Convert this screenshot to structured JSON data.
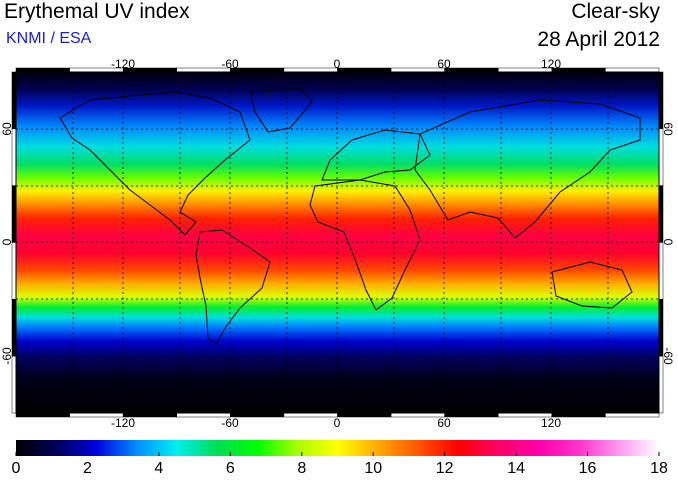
{
  "header": {
    "title": "Erythemal UV index",
    "source": "KNMI / ESA",
    "condition": "Clear-sky",
    "date": "28 April 2012"
  },
  "axes": {
    "lon_ticks": [
      "-120",
      "-60",
      "0",
      "60",
      "120"
    ],
    "lat_ticks": [
      "60",
      "0",
      "-60"
    ],
    "lon_range": [
      -180,
      180
    ],
    "lat_range": [
      -90,
      90
    ],
    "grid_spacing_deg": 30
  },
  "colorbar": {
    "min": 0,
    "max": 18,
    "tick_labels": [
      "0",
      "2",
      "4",
      "6",
      "8",
      "10",
      "12",
      "14",
      "16",
      "18"
    ],
    "colors": [
      "#000000",
      "#00005a",
      "#0000dd",
      "#0090ff",
      "#00eeee",
      "#00dd55",
      "#00ff00",
      "#aaff00",
      "#ffff00",
      "#ffaa00",
      "#ff5500",
      "#ff0000",
      "#ff0066",
      "#ff00aa",
      "#ff33cc",
      "#ff99ee",
      "#ffffff"
    ]
  },
  "colors": {
    "title_text": "#000000",
    "source_text": "#1a1adb"
  }
}
